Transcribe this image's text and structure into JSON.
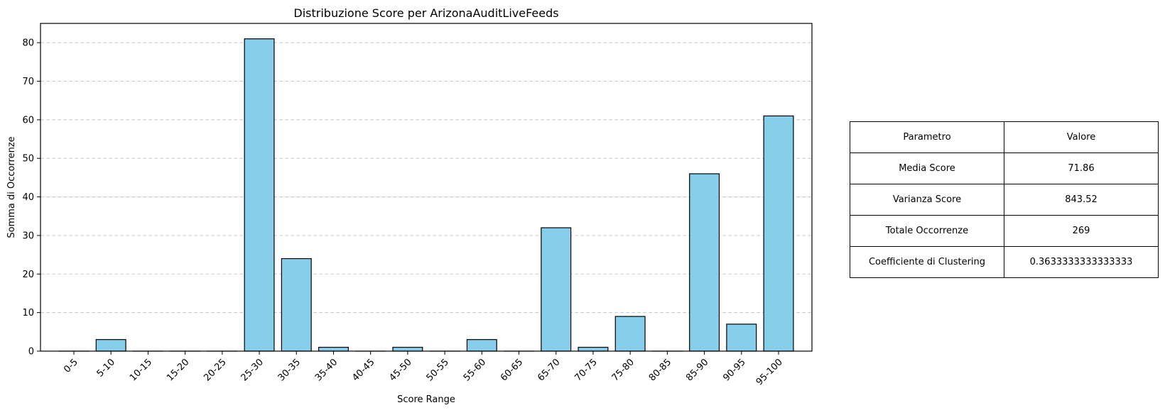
{
  "chart_data": {
    "type": "bar",
    "title": "Distribuzione Score per ArizonaAuditLiveFeeds",
    "xlabel": "Score Range",
    "ylabel": "Somma di Occorrenze",
    "categories": [
      "0-5",
      "5-10",
      "10-15",
      "15-20",
      "20-25",
      "25-30",
      "30-35",
      "35-40",
      "40-45",
      "45-50",
      "50-55",
      "55-60",
      "60-65",
      "65-70",
      "70-75",
      "75-80",
      "80-85",
      "85-90",
      "90-95",
      "95-100"
    ],
    "values": [
      0,
      3,
      0,
      0,
      0,
      81,
      24,
      1,
      0,
      1,
      0,
      3,
      0,
      32,
      1,
      9,
      0,
      46,
      7,
      61
    ],
    "ylim": [
      0,
      85
    ],
    "yticks": [
      0,
      10,
      20,
      30,
      40,
      50,
      60,
      70,
      80
    ],
    "grid": "y-dashed",
    "bar_color": "#87ceeb",
    "edge_color": "#000000"
  },
  "table": {
    "header": [
      "Parametro",
      "Valore"
    ],
    "rows": [
      [
        "Media Score",
        "71.86"
      ],
      [
        "Varianza Score",
        "843.52"
      ],
      [
        "Totale Occorrenze",
        "269"
      ],
      [
        "Coefficiente di Clustering",
        "0.3633333333333333"
      ]
    ]
  }
}
